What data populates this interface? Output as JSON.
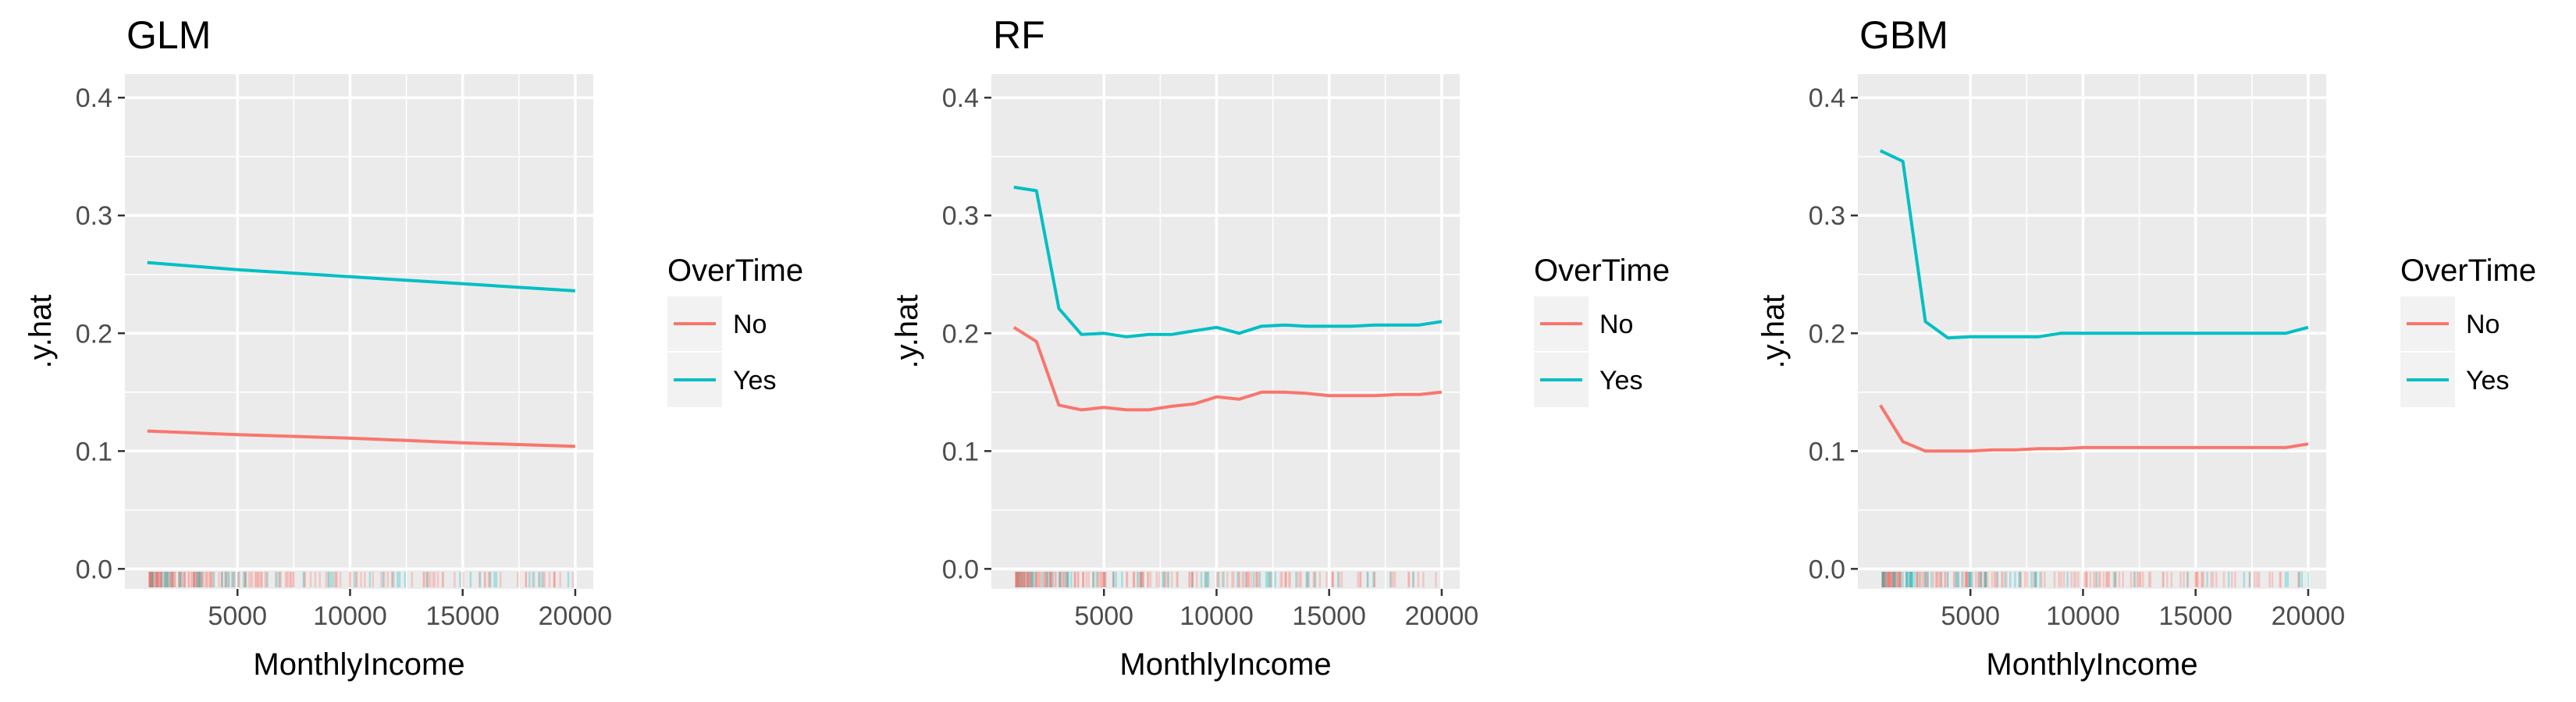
{
  "figure": {
    "legend_position": "right",
    "grid": true,
    "background": "#ebebeb",
    "grid_color": "#ffffff"
  },
  "chart_data": [
    {
      "type": "line",
      "title": "GLM",
      "xlabel": "MonthlyIncome",
      "ylabel": ".y.hat",
      "xlim": [
        0,
        20800
      ],
      "ylim": [
        -0.017,
        0.42
      ],
      "x_ticks": [
        5000,
        10000,
        15000,
        20000
      ],
      "y_ticks": [
        0.0,
        0.1,
        0.2,
        0.3,
        0.4
      ],
      "x_tick_labels": [
        "5000",
        "10000",
        "15000",
        "20000"
      ],
      "y_tick_labels": [
        "0.0",
        "0.1",
        "0.2",
        "0.3",
        "0.4"
      ],
      "legend": {
        "title": "OverTime",
        "entries": [
          "No",
          "Yes"
        ]
      },
      "series": [
        {
          "name": "No",
          "color": "#f8766d",
          "x": [
            1000,
            5000,
            10000,
            15000,
            20000
          ],
          "y": [
            0.117,
            0.114,
            0.111,
            0.107,
            0.104
          ]
        },
        {
          "name": "Yes",
          "color": "#00bfc4",
          "x": [
            1000,
            5000,
            10000,
            15000,
            20000
          ],
          "y": [
            0.26,
            0.254,
            0.248,
            0.242,
            0.236
          ]
        }
      ]
    },
    {
      "type": "line",
      "title": "RF",
      "xlabel": "MonthlyIncome",
      "ylabel": ".y.hat",
      "xlim": [
        0,
        20800
      ],
      "ylim": [
        -0.017,
        0.42
      ],
      "x_ticks": [
        5000,
        10000,
        15000,
        20000
      ],
      "y_ticks": [
        0.0,
        0.1,
        0.2,
        0.3,
        0.4
      ],
      "x_tick_labels": [
        "5000",
        "10000",
        "15000",
        "20000"
      ],
      "y_tick_labels": [
        "0.0",
        "0.1",
        "0.2",
        "0.3",
        "0.4"
      ],
      "legend": {
        "title": "OverTime",
        "entries": [
          "No",
          "Yes"
        ]
      },
      "series": [
        {
          "name": "No",
          "color": "#f8766d",
          "x": [
            1000,
            2000,
            3000,
            4000,
            5000,
            6000,
            7000,
            8000,
            9000,
            10000,
            11000,
            12000,
            13000,
            14000,
            15000,
            16000,
            17000,
            18000,
            19000,
            20000
          ],
          "y": [
            0.205,
            0.193,
            0.139,
            0.135,
            0.137,
            0.135,
            0.135,
            0.138,
            0.14,
            0.146,
            0.144,
            0.15,
            0.15,
            0.149,
            0.147,
            0.147,
            0.147,
            0.148,
            0.148,
            0.15
          ]
        },
        {
          "name": "Yes",
          "color": "#00bfc4",
          "x": [
            1000,
            2000,
            3000,
            4000,
            5000,
            6000,
            7000,
            8000,
            9000,
            10000,
            11000,
            12000,
            13000,
            14000,
            15000,
            16000,
            17000,
            18000,
            19000,
            20000
          ],
          "y": [
            0.324,
            0.321,
            0.221,
            0.199,
            0.2,
            0.197,
            0.199,
            0.199,
            0.202,
            0.205,
            0.2,
            0.206,
            0.207,
            0.206,
            0.206,
            0.206,
            0.207,
            0.207,
            0.207,
            0.21
          ]
        }
      ]
    },
    {
      "type": "line",
      "title": "GBM",
      "xlabel": "MonthlyIncome",
      "ylabel": ".y.hat",
      "xlim": [
        0,
        20800
      ],
      "ylim": [
        -0.017,
        0.42
      ],
      "x_ticks": [
        5000,
        10000,
        15000,
        20000
      ],
      "y_ticks": [
        0.0,
        0.1,
        0.2,
        0.3,
        0.4
      ],
      "x_tick_labels": [
        "5000",
        "10000",
        "15000",
        "20000"
      ],
      "y_tick_labels": [
        "0.0",
        "0.1",
        "0.2",
        "0.3",
        "0.4"
      ],
      "legend": {
        "title": "OverTime",
        "entries": [
          "No",
          "Yes"
        ]
      },
      "series": [
        {
          "name": "No",
          "color": "#f8766d",
          "x": [
            1000,
            2000,
            3000,
            4000,
            5000,
            6000,
            7000,
            8000,
            9000,
            10000,
            11000,
            12000,
            13000,
            14000,
            15000,
            16000,
            17000,
            18000,
            19000,
            20000
          ],
          "y": [
            0.139,
            0.108,
            0.1,
            0.1,
            0.1,
            0.101,
            0.101,
            0.102,
            0.102,
            0.103,
            0.103,
            0.103,
            0.103,
            0.103,
            0.103,
            0.103,
            0.103,
            0.103,
            0.103,
            0.106
          ]
        },
        {
          "name": "Yes",
          "color": "#00bfc4",
          "x": [
            1000,
            2000,
            3000,
            4000,
            5000,
            6000,
            7000,
            8000,
            9000,
            10000,
            11000,
            12000,
            13000,
            14000,
            15000,
            16000,
            17000,
            18000,
            19000,
            20000
          ],
          "y": [
            0.355,
            0.346,
            0.21,
            0.196,
            0.197,
            0.197,
            0.197,
            0.197,
            0.2,
            0.2,
            0.2,
            0.2,
            0.2,
            0.2,
            0.2,
            0.2,
            0.2,
            0.2,
            0.2,
            0.205
          ]
        }
      ]
    }
  ]
}
